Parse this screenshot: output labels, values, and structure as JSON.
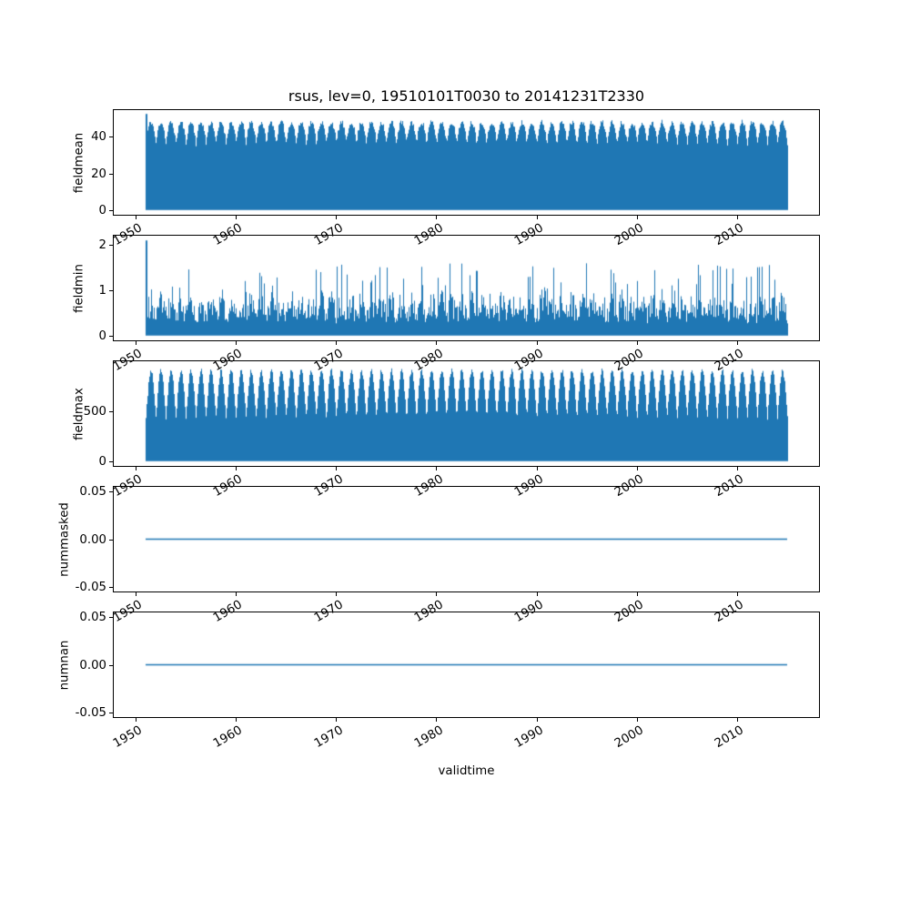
{
  "figure": {
    "title": "rsus, lev=0, 19510101T0030 to 20141231T2330",
    "xlabel": "validtime",
    "background": "#ffffff",
    "accent_color": "#1f77b4"
  },
  "chart_data": [
    {
      "type": "area",
      "name": "fieldmean",
      "ylabel": "fieldmean",
      "color": "#1f77b4",
      "summary": "Dense sub-daily series filling solid from 0 up to an annual envelope: yearly peaks ~48, seasonal dips ~36, single initial spike ~52 at 1951.",
      "x": {
        "start": 1951.0,
        "end": 2015.0,
        "lim": [
          1947.8,
          2018.2
        ],
        "ticks": [
          1950,
          1960,
          1970,
          1980,
          1990,
          2000,
          2010
        ],
        "tick_labels": [
          "1950",
          "1960",
          "1970",
          "1980",
          "1990",
          "2000",
          "2010"
        ]
      },
      "y": {
        "lim": [
          -2.6,
          54.6
        ],
        "ticks": [
          0,
          20,
          40
        ],
        "tick_labels": [
          "0",
          "20",
          "40"
        ]
      },
      "pattern": {
        "kind": "seasonal-fill",
        "seed": 11,
        "base": 0,
        "env_min": 35.5,
        "env_max": 48,
        "sharpness": 0.4,
        "noise": 1.4,
        "start_spike": 52.5
      }
    },
    {
      "type": "area",
      "name": "fieldmin",
      "ylabel": "fieldmin",
      "color": "#1f77b4",
      "summary": "Noisy minima mostly 0.3-0.9 with irregular spikes reaching 1.0-1.6; initial spike ~2.1 at 1951.",
      "x": {
        "start": 1951.0,
        "end": 2015.0,
        "lim": [
          1947.8,
          2018.2
        ],
        "ticks": [
          1950,
          1960,
          1970,
          1980,
          1990,
          2000,
          2010
        ],
        "tick_labels": [
          "1950",
          "1960",
          "1970",
          "1980",
          "1990",
          "2000",
          "2010"
        ]
      },
      "y": {
        "lim": [
          -0.105,
          2.205
        ],
        "ticks": [
          0,
          1,
          2
        ],
        "tick_labels": [
          "0",
          "1",
          "2"
        ]
      },
      "pattern": {
        "kind": "noisy-spikes",
        "seed": 23,
        "base": 0,
        "base_min": 0.35,
        "base_max": 0.9,
        "spike_prob": 0.07,
        "spike_min": 0.95,
        "spike_max": 1.6,
        "start_spike": 2.1
      }
    },
    {
      "type": "area",
      "name": "fieldmax",
      "ylabel": "fieldmax",
      "color": "#1f77b4",
      "summary": "Annual humps filling solid from 0: yearly maxima ~900, dips between years down to ~430.",
      "x": {
        "start": 1951.0,
        "end": 2015.0,
        "lim": [
          1947.8,
          2018.2
        ],
        "ticks": [
          1950,
          1960,
          1970,
          1980,
          1990,
          2000,
          2010
        ],
        "tick_labels": [
          "1950",
          "1960",
          "1970",
          "1980",
          "1990",
          "2000",
          "2010"
        ]
      },
      "y": {
        "lim": [
          -47.5,
          997.5
        ],
        "ticks": [
          0,
          500
        ],
        "tick_labels": [
          "0",
          "500"
        ]
      },
      "pattern": {
        "kind": "seasonal-fill",
        "seed": 37,
        "base": 0,
        "env_min": 430,
        "env_max": 905,
        "sharpness": 0.55,
        "noise": 22,
        "start_spike": 0
      }
    },
    {
      "type": "line",
      "name": "nummasked",
      "ylabel": "nummasked",
      "color": "#1f77b4",
      "summary": "Constant 0 over the full period 1951-2015.",
      "x": {
        "start": 1951.0,
        "end": 2015.0,
        "lim": [
          1947.8,
          2018.2
        ],
        "ticks": [
          1950,
          1960,
          1970,
          1980,
          1990,
          2000,
          2010
        ],
        "tick_labels": [
          "1950",
          "1960",
          "1970",
          "1980",
          "1990",
          "2000",
          "2010"
        ]
      },
      "y": {
        "lim": [
          -0.055,
          0.055
        ],
        "ticks": [
          -0.05,
          0,
          0.05
        ],
        "tick_labels": [
          "-0.05",
          "0.00",
          "0.05"
        ]
      },
      "pattern": {
        "kind": "flat",
        "value": 0,
        "linewidth": 1.6
      }
    },
    {
      "type": "line",
      "name": "numnan",
      "ylabel": "numnan",
      "color": "#1f77b4",
      "summary": "Constant 0 over the full period 1951-2015.",
      "x": {
        "start": 1951.0,
        "end": 2015.0,
        "lim": [
          1947.8,
          2018.2
        ],
        "ticks": [
          1950,
          1960,
          1970,
          1980,
          1990,
          2000,
          2010
        ],
        "tick_labels": [
          "1950",
          "1960",
          "1970",
          "1980",
          "1990",
          "2000",
          "2010"
        ]
      },
      "y": {
        "lim": [
          -0.055,
          0.055
        ],
        "ticks": [
          -0.05,
          0,
          0.05
        ],
        "tick_labels": [
          "-0.05",
          "0.00",
          "0.05"
        ]
      },
      "pattern": {
        "kind": "flat",
        "value": 0,
        "linewidth": 1.6
      }
    }
  ]
}
